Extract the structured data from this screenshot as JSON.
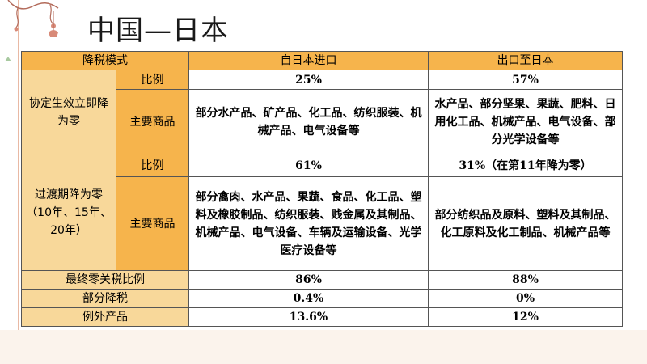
{
  "title": "中国—日本",
  "table": {
    "header": {
      "mode": "降税模式",
      "import": "自日本进口",
      "export": "出口至日本"
    },
    "group1": {
      "label": "协定生效立即降为零",
      "ratio_label": "比例",
      "ratio_import": "25%",
      "ratio_export": "57%",
      "goods_label": "主要商品",
      "goods_import": "部分水产品、矿产品、化工品、纺织服装、机械产品、电气设备等",
      "goods_export": "水产品、部分坚果、果蔬、肥料、日用化工品、机械产品、电气设备、部分光学设备等"
    },
    "group2": {
      "label": "过渡期降为零（10年、15年、20年）",
      "ratio_label": "比例",
      "ratio_import": "61%",
      "ratio_export": "31%（在第11年降为零）",
      "goods_label": "主要商品",
      "goods_import": "部分禽肉、水产品、果蔬、食品、化工品、塑料及橡胶制品、纺织服装、贱金属及其制品、机械产品、电气设备、车辆及运输设备、光学医疗设备等",
      "goods_export": "部分纺织品及原料、塑料及其制品、化工原料及化工制品、机械产品等"
    },
    "final": {
      "label": "最终零关税比例",
      "import": "86%",
      "export": "88%"
    },
    "partial": {
      "label": "部分降税",
      "import": "0.4%",
      "export": "0%"
    },
    "exception": {
      "label": "例外产品",
      "import": "13.6%",
      "export": "12%"
    }
  },
  "colors": {
    "header_orange": "#f6b44c",
    "light_orange": "#f8d89a",
    "border": "#555555"
  }
}
